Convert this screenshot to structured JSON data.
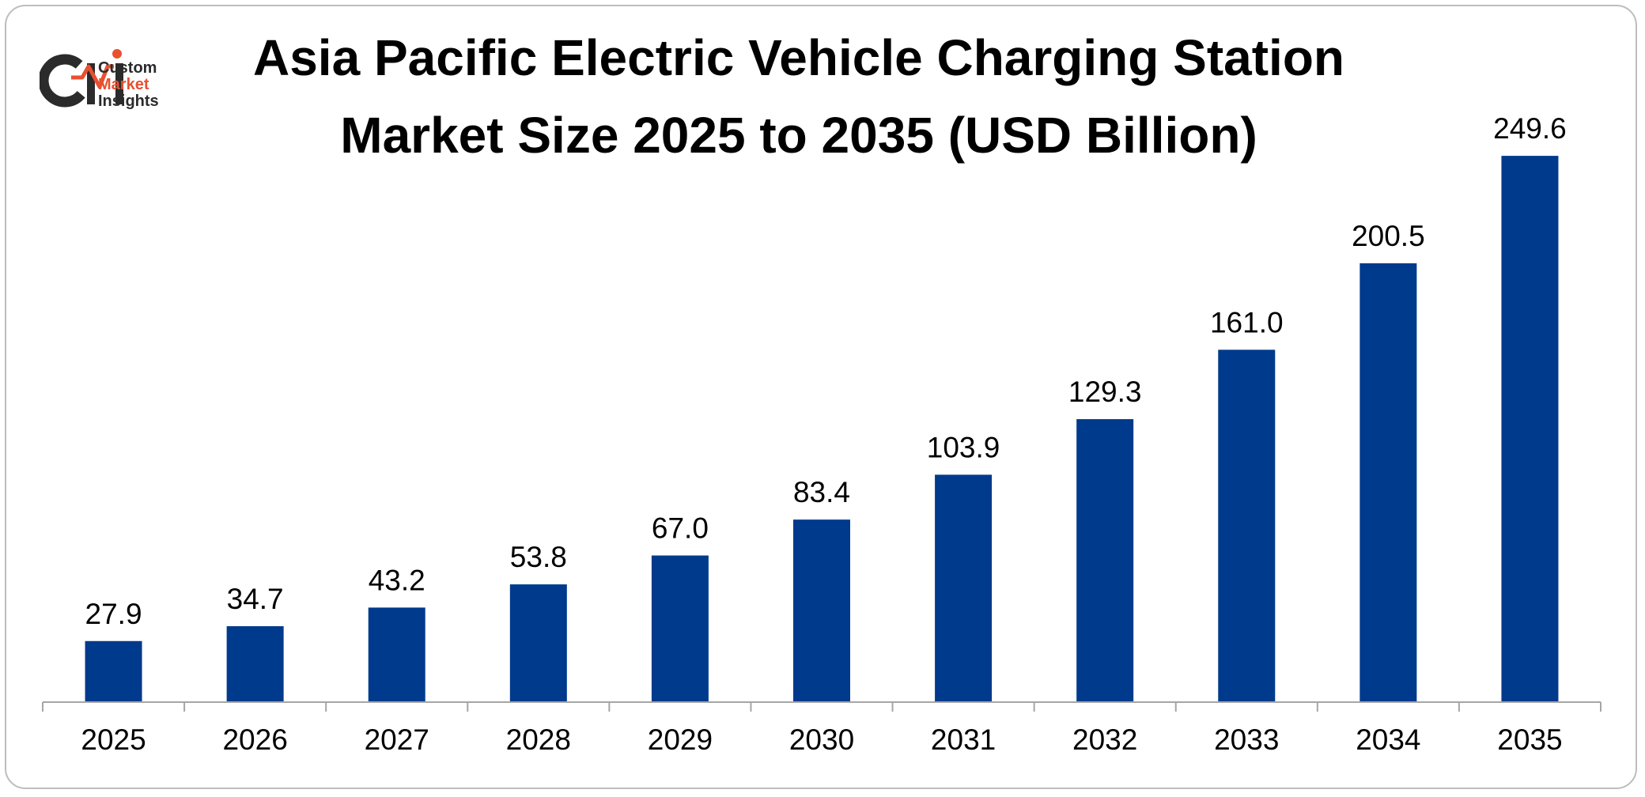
{
  "logo": {
    "mark": "CMI",
    "line1": "Custom",
    "line2": "Market",
    "line3": "Insights",
    "colors": {
      "dark": "#2b2b2b",
      "accent": "#e8502f"
    }
  },
  "chart_data": {
    "type": "bar",
    "title_line1": "Asia Pacific Electric Vehicle Charging Station",
    "title_line2": "Market Size 2025 to 2035 (USD Billion)",
    "categories": [
      "2025",
      "2026",
      "2027",
      "2028",
      "2029",
      "2030",
      "2031",
      "2032",
      "2033",
      "2034",
      "2035"
    ],
    "values": [
      27.9,
      34.7,
      43.2,
      53.8,
      67.0,
      83.4,
      103.9,
      129.3,
      161.0,
      200.5,
      249.6
    ],
    "value_labels": [
      "27.9",
      "34.7",
      "43.2",
      "53.8",
      "67.0",
      "83.4",
      "103.9",
      "129.3",
      "161.0",
      "200.5",
      "249.6"
    ],
    "ylim": [
      0,
      250
    ],
    "grid": false,
    "legend": "none",
    "bar_color": "#003a8c",
    "axis_color": "#a6a6a6"
  }
}
